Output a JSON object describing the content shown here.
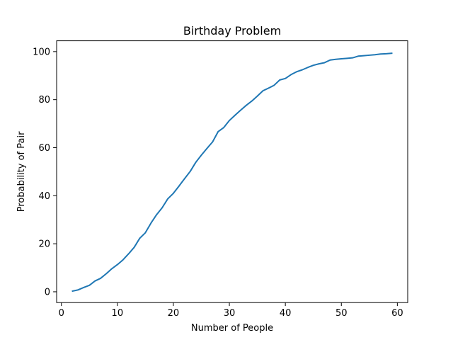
{
  "chart_data": {
    "type": "line",
    "title": "Birthday Problem",
    "xlabel": "Number of People",
    "ylabel": "Probability of Pair",
    "xlim": [
      -0.85,
      61.85
    ],
    "ylim": [
      -4.5,
      104.5
    ],
    "x_ticks": [
      0,
      10,
      20,
      30,
      40,
      50,
      60
    ],
    "y_ticks": [
      0,
      20,
      40,
      60,
      80,
      100
    ],
    "grid": false,
    "legend": "none",
    "series": [
      {
        "color": "#1f77b4",
        "x": [
          2,
          3,
          4,
          5,
          6,
          7,
          8,
          9,
          10,
          11,
          12,
          13,
          14,
          15,
          16,
          17,
          18,
          19,
          20,
          21,
          22,
          23,
          24,
          25,
          26,
          27,
          28,
          29,
          30,
          31,
          32,
          33,
          34,
          35,
          36,
          37,
          38,
          39,
          40,
          41,
          42,
          43,
          44,
          45,
          46,
          47,
          48,
          49,
          50,
          51,
          52,
          53,
          54,
          55,
          56,
          57,
          58,
          59
        ],
        "values": [
          0.3,
          0.8,
          1.8,
          2.7,
          4.5,
          5.6,
          7.5,
          9.6,
          11.3,
          13.3,
          15.8,
          18.5,
          22.3,
          24.6,
          28.6,
          32.1,
          35.0,
          38.7,
          41.0,
          44.0,
          47.1,
          50.1,
          53.9,
          56.9,
          59.7,
          62.4,
          66.7,
          68.4,
          71.3,
          73.5,
          75.6,
          77.6,
          79.4,
          81.5,
          83.7,
          84.8,
          86.0,
          88.2,
          88.8,
          90.4,
          91.6,
          92.4,
          93.4,
          94.3,
          94.9,
          95.4,
          96.5,
          96.8,
          97.0,
          97.2,
          97.4,
          98.1,
          98.3,
          98.5,
          98.7,
          99.0,
          99.1,
          99.3
        ]
      }
    ]
  }
}
